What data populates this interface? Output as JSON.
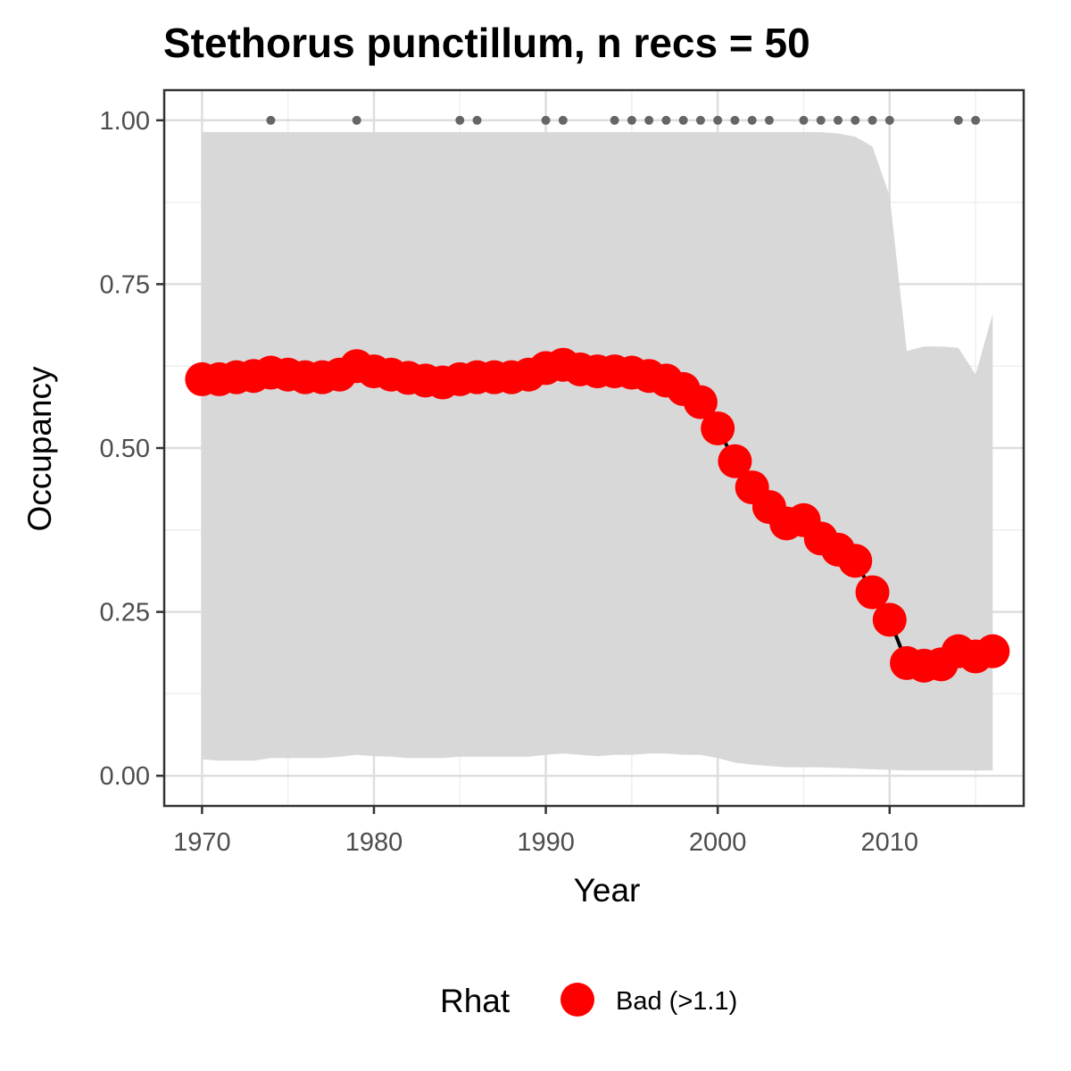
{
  "chart_data": {
    "type": "line",
    "title": "Stethorus punctillum, n recs = 50",
    "xlabel": "Year",
    "ylabel": "Occupancy",
    "xlim": [
      1967.8,
      2017.8
    ],
    "ylim": [
      -0.046,
      1.046
    ],
    "x_ticks": [
      1970,
      1980,
      1990,
      2000,
      2010
    ],
    "x_tick_labels": [
      "1970",
      "1980",
      "1990",
      "2000",
      "2010"
    ],
    "y_ticks": [
      0,
      0.25,
      0.5,
      0.75,
      1
    ],
    "y_tick_labels": [
      "0.00",
      "0.25",
      "0.50",
      "0.75",
      "1.00"
    ],
    "grid": true,
    "colors": {
      "points": "#ff0000",
      "line": "#000000",
      "ribbon": "#d6d6d6",
      "records": "#666666",
      "panel_border": "#333333",
      "grid_major": "#dedede",
      "grid_minor": "#efefef"
    },
    "series": [
      {
        "x": [
          1970,
          1971,
          1972,
          1973,
          1974,
          1975,
          1976,
          1977,
          1978,
          1979,
          1980,
          1981,
          1982,
          1983,
          1984,
          1985,
          1986,
          1987,
          1988,
          1989,
          1990,
          1991,
          1992,
          1993,
          1994,
          1995,
          1996,
          1997,
          1998,
          1999,
          2000,
          2001,
          2002,
          2003,
          2004,
          2005,
          2006,
          2007,
          2008,
          2009,
          2010,
          2011,
          2012,
          2013,
          2014,
          2015,
          2016
        ],
        "values": [
          0.605,
          0.605,
          0.608,
          0.61,
          0.615,
          0.612,
          0.608,
          0.608,
          0.612,
          0.625,
          0.617,
          0.612,
          0.607,
          0.603,
          0.6,
          0.605,
          0.608,
          0.608,
          0.608,
          0.612,
          0.622,
          0.627,
          0.62,
          0.617,
          0.617,
          0.615,
          0.61,
          0.603,
          0.59,
          0.57,
          0.53,
          0.48,
          0.44,
          0.41,
          0.385,
          0.39,
          0.362,
          0.345,
          0.328,
          0.28,
          0.238,
          0.172,
          0.168,
          0.17,
          0.19,
          0.182,
          0.19
        ],
        "lower": [
          0.025,
          0.023,
          0.023,
          0.023,
          0.027,
          0.027,
          0.027,
          0.027,
          0.029,
          0.032,
          0.03,
          0.029,
          0.027,
          0.027,
          0.027,
          0.029,
          0.029,
          0.029,
          0.029,
          0.029,
          0.032,
          0.034,
          0.032,
          0.03,
          0.032,
          0.032,
          0.034,
          0.034,
          0.032,
          0.032,
          0.027,
          0.02,
          0.017,
          0.015,
          0.013,
          0.013,
          0.013,
          0.012,
          0.011,
          0.01,
          0.009,
          0.008,
          0.008,
          0.008,
          0.008,
          0.008,
          0.008
        ],
        "upper": [
          0.982,
          0.982,
          0.982,
          0.982,
          0.982,
          0.982,
          0.982,
          0.982,
          0.982,
          0.982,
          0.982,
          0.982,
          0.982,
          0.982,
          0.982,
          0.982,
          0.982,
          0.982,
          0.982,
          0.982,
          0.982,
          0.982,
          0.982,
          0.982,
          0.982,
          0.982,
          0.982,
          0.982,
          0.982,
          0.982,
          0.982,
          0.982,
          0.982,
          0.982,
          0.982,
          0.982,
          0.982,
          0.98,
          0.975,
          0.96,
          0.885,
          0.648,
          0.655,
          0.655,
          0.653,
          0.612,
          0.705
        ]
      }
    ],
    "record_years": [
      1974,
      1979,
      1985,
      1986,
      1990,
      1991,
      1994,
      1995,
      1996,
      1997,
      1998,
      1999,
      2000,
      2001,
      2002,
      2003,
      2005,
      2006,
      2007,
      2008,
      2009,
      2010,
      2014,
      2015
    ],
    "record_y": 1,
    "legend": {
      "title": "Rhat",
      "label": "Bad (>1.1)",
      "position": "bottom"
    }
  }
}
